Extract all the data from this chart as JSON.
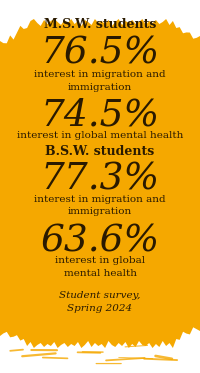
{
  "bg_color": "#FFFFFF",
  "blob_color": "#F5A800",
  "text_color": "#2a1a00",
  "title1": "M.S.W. students",
  "stat1": "76.5%",
  "label1": "interest in migration and\nimmigration",
  "stat2": "74.5%",
  "label2": "interest in global mental health",
  "title2": "B.S.W. students",
  "stat3": "77.3%",
  "label3": "interest in migration and\nimmigration",
  "stat4": "63.6%",
  "label4": "interest in global\nmental health",
  "footnote": "Student survey,\nSpring 2024",
  "figsize": [
    2.0,
    3.73
  ],
  "dpi": 100
}
